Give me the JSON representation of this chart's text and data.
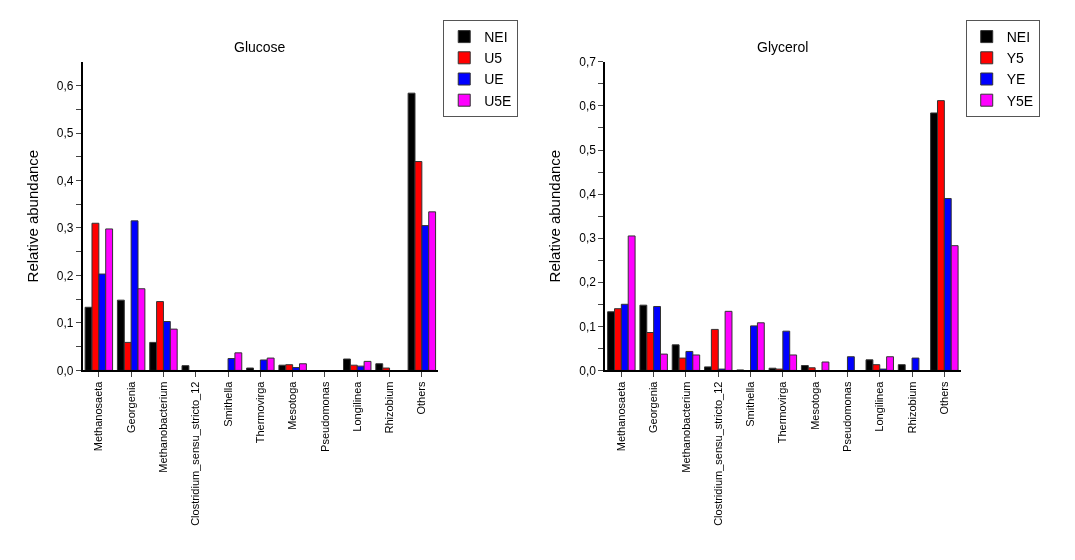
{
  "chart_data": [
    {
      "type": "bar",
      "title": "Glucose",
      "ylabel": "Relative abundance",
      "legend": "top right",
      "categories": [
        "Methanosaeta",
        "Georgenia",
        "Methanobacterium",
        "Clostridium_sensu_stricto_12",
        "Smithella",
        "Thermovirga",
        "Mesotoga",
        "Pseudomonas",
        "Longilinea",
        "Rhizobium",
        "Others"
      ],
      "ylim": [
        0,
        0.65
      ],
      "yticks": [
        {
          "value": 0,
          "label": "0,0"
        },
        {
          "value": 0.05,
          "label": null
        },
        {
          "value": 0.1,
          "label": "0,1"
        },
        {
          "value": 0.15,
          "label": null
        },
        {
          "value": 0.2,
          "label": "0,2"
        },
        {
          "value": 0.25,
          "label": null
        },
        {
          "value": 0.3,
          "label": "0,3"
        },
        {
          "value": 0.35,
          "label": null
        },
        {
          "value": 0.4,
          "label": "0,4"
        },
        {
          "value": 0.45,
          "label": null
        },
        {
          "value": 0.5,
          "label": "0,5"
        },
        {
          "value": 0.55,
          "label": null
        },
        {
          "value": 0.6,
          "label": "0,6"
        }
      ],
      "series": [
        {
          "name": "NEI",
          "color": "#000000",
          "values": [
            0.133,
            0.148,
            0.059,
            0.01,
            0,
            0.005,
            0.011,
            0,
            0.024,
            0.014,
            0.584
          ]
        },
        {
          "name": "U5",
          "color": "#ff0000",
          "values": [
            0.31,
            0.059,
            0.145,
            0,
            null,
            null,
            0.012,
            0,
            0.011,
            0.005,
            0.44
          ]
        },
        {
          "name": "UE",
          "color": "#0000ff",
          "values": [
            0.203,
            0.315,
            0.103,
            0,
            0.025,
            0.022,
            0.006,
            0,
            0.009,
            0,
            0.305
          ]
        },
        {
          "name": "U5E",
          "color": "#ff00ff",
          "values": [
            0.298,
            0.172,
            0.087,
            0,
            0.037,
            0.026,
            0.014,
            0,
            0.019,
            0,
            0.334
          ]
        }
      ]
    },
    {
      "type": "bar",
      "title": "Glycerol",
      "ylabel": "Relative abundance",
      "legend": "top right",
      "categories": [
        "Methanosaeta",
        "Georgenia",
        "Methanobacterium",
        "Clostridium_sensu_stricto_12",
        "Smithella",
        "Thermovirga",
        "Mesotoga",
        "Pseudomonas",
        "Longilinea",
        "Rhizobium",
        "Others"
      ],
      "ylim": [
        0,
        0.7
      ],
      "yticks": [
        {
          "value": 0,
          "label": "0,0"
        },
        {
          "value": 0.05,
          "label": null
        },
        {
          "value": 0.1,
          "label": "0,1"
        },
        {
          "value": 0.15,
          "label": null
        },
        {
          "value": 0.2,
          "label": "0,2"
        },
        {
          "value": 0.25,
          "label": null
        },
        {
          "value": 0.3,
          "label": "0,3"
        },
        {
          "value": 0.35,
          "label": null
        },
        {
          "value": 0.4,
          "label": "0,4"
        },
        {
          "value": 0.45,
          "label": null
        },
        {
          "value": 0.5,
          "label": "0,5"
        },
        {
          "value": 0.55,
          "label": null
        },
        {
          "value": 0.6,
          "label": "0,6"
        },
        {
          "value": 0.65,
          "label": null
        },
        {
          "value": 0.7,
          "label": "0,7"
        }
      ],
      "series": [
        {
          "name": "NEI",
          "color": "#000000",
          "values": [
            0.133,
            0.148,
            0.058,
            0.008,
            0.001,
            0.005,
            0.011,
            0,
            0.024,
            0.013,
            0.584
          ]
        },
        {
          "name": "Y5",
          "color": "#ff0000",
          "values": [
            0.14,
            0.086,
            0.028,
            0.093,
            0,
            0.003,
            0.006,
            0,
            0.013,
            0,
            0.612
          ]
        },
        {
          "name": "YE",
          "color": "#0000ff",
          "values": [
            0.15,
            0.145,
            0.043,
            0.003,
            0.101,
            0.089,
            null,
            0.031,
            0.003,
            0.028,
            0.39
          ]
        },
        {
          "name": "Y5E",
          "color": "#ff00ff",
          "values": [
            0.305,
            0.037,
            0.035,
            0.134,
            0.108,
            0.035,
            0.019,
            0,
            0.031,
            0,
            0.283
          ]
        }
      ]
    }
  ]
}
